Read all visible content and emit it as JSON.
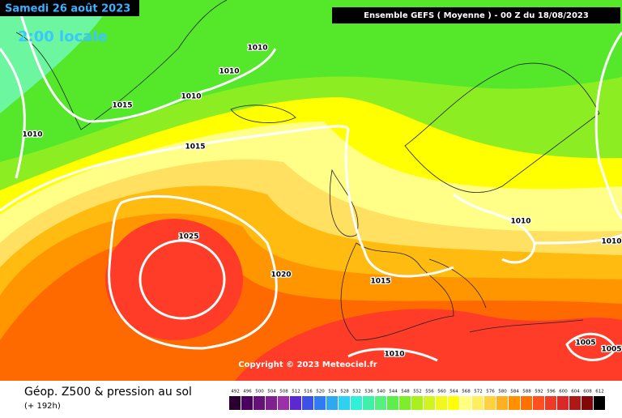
{
  "header": {
    "date": "Samedi 26 août 2023",
    "time": "2:00 locale",
    "run": "Ensemble GEFS  ( Moyenne )  - 00 Z du 18/08/2023"
  },
  "copyright": "Copyright © 2023 Meteociel.fr",
  "footer": {
    "title": "Géop. Z500 & pression au sol",
    "lead": "(+ 192h)"
  },
  "isobars": [
    1010,
    1010,
    1010,
    1015,
    1010,
    1015,
    1025,
    1020,
    1015,
    1010,
    1010,
    1010,
    1005,
    1005
  ],
  "legend": {
    "values": [
      492,
      496,
      500,
      504,
      508,
      512,
      516,
      520,
      524,
      528,
      532,
      536,
      540,
      544,
      548,
      552,
      556,
      560,
      564,
      568,
      572,
      576,
      580,
      584,
      588,
      592,
      596,
      600,
      604,
      608,
      612
    ],
    "colors": [
      "#2a0030",
      "#4b0060",
      "#66107a",
      "#80208f",
      "#9b30a8",
      "#5a2ad0",
      "#3d50e8",
      "#2f7cf0",
      "#30a8f0",
      "#30d0f0",
      "#30f0d8",
      "#40f0a8",
      "#55f080",
      "#60ec50",
      "#7cee2a",
      "#a8f020",
      "#d0f420",
      "#f0f820",
      "#ffff00",
      "#ffff80",
      "#ffee60",
      "#ffd040",
      "#ffb020",
      "#ff9000",
      "#ff7000",
      "#ff5020",
      "#f03a28",
      "#d82828",
      "#b01818",
      "#800808",
      "#000000"
    ]
  }
}
